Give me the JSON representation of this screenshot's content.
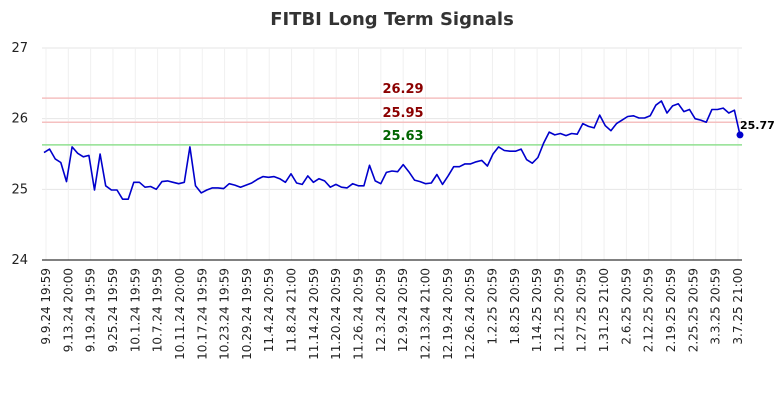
{
  "chart_data": {
    "type": "line",
    "title": "FITBI Long Term Signals",
    "xlabel": "",
    "ylabel": "",
    "ylim": [
      24,
      27
    ],
    "yticks": [
      24,
      25,
      26,
      27
    ],
    "grid": true,
    "xtick_labels": [
      "9.9.24 19:59",
      "9.13.24 20:00",
      "9.19.24 19:59",
      "9.25.24 19:59",
      "10.1.24 19:59",
      "10.7.24 19:59",
      "10.11.24 20:00",
      "10.17.24 19:59",
      "10.23.24 19:59",
      "10.29.24 19:59",
      "11.4.24 20:59",
      "11.8.24 21:00",
      "11.14.24 20:59",
      "11.20.24 20:59",
      "11.26.24 20:59",
      "12.3.24 20:59",
      "12.9.24 20:59",
      "12.13.24 21:00",
      "12.19.24 20:59",
      "12.26.24 20:59",
      "1.2.25 20:59",
      "1.8.25 20:59",
      "1.14.25 20:59",
      "1.21.25 20:59",
      "1.27.25 20:59",
      "1.31.25 21:00",
      "2.6.25 20:59",
      "2.12.25 20:59",
      "2.19.25 20:59",
      "2.25.25 20:59",
      "3.3.25 20:59",
      "3.7.25 21:00"
    ],
    "series": [
      {
        "values": [
          25.52,
          25.57,
          25.43,
          25.38,
          25.11,
          25.6,
          25.51,
          25.46,
          25.48,
          24.99,
          25.5,
          25.05,
          24.99,
          24.99,
          24.86,
          24.86,
          25.1,
          25.1,
          25.03,
          25.04,
          25.0,
          25.11,
          25.12,
          25.1,
          25.08,
          25.1,
          25.6,
          25.05,
          24.95,
          24.99,
          25.02,
          25.02,
          25.01,
          25.08,
          25.06,
          25.03,
          25.06,
          25.09,
          25.14,
          25.18,
          25.17,
          25.18,
          25.15,
          25.1,
          25.22,
          25.09,
          25.07,
          25.19,
          25.1,
          25.15,
          25.12,
          25.03,
          25.07,
          25.03,
          25.02,
          25.08,
          25.05,
          25.05,
          25.34,
          25.12,
          25.08,
          25.24,
          25.26,
          25.25,
          25.35,
          25.25,
          25.13,
          25.11,
          25.08,
          25.09,
          25.21,
          25.07,
          25.19,
          25.32,
          25.32,
          25.36,
          25.36,
          25.39,
          25.41,
          25.33,
          25.5,
          25.6,
          25.55,
          25.54,
          25.54,
          25.57,
          25.42,
          25.37,
          25.45,
          25.65,
          25.81,
          25.77,
          25.79,
          25.76,
          25.79,
          25.78,
          25.93,
          25.89,
          25.87,
          26.05,
          25.9,
          25.83,
          25.93,
          25.98,
          26.03,
          26.04,
          26.01,
          26.01,
          26.04,
          26.19,
          26.25,
          26.08,
          26.18,
          26.21,
          26.1,
          26.13,
          26.0,
          25.98,
          25.95,
          26.13,
          26.13,
          26.15,
          26.08,
          26.12,
          25.77
        ]
      }
    ],
    "levels": [
      {
        "label": "26.29",
        "value": 26.29,
        "line_color": "#f5c0c0",
        "text_color": "#8b0000"
      },
      {
        "label": "25.95",
        "value": 25.95,
        "line_color": "#f5c0c0",
        "text_color": "#8b0000"
      },
      {
        "label": "25.63",
        "value": 25.63,
        "line_color": "#90e090",
        "text_color": "#006400"
      }
    ],
    "last_value_label": "25.77",
    "colors": {
      "line": "#0000cc",
      "grid": "#e6e6e6",
      "axis": "#000000"
    }
  }
}
